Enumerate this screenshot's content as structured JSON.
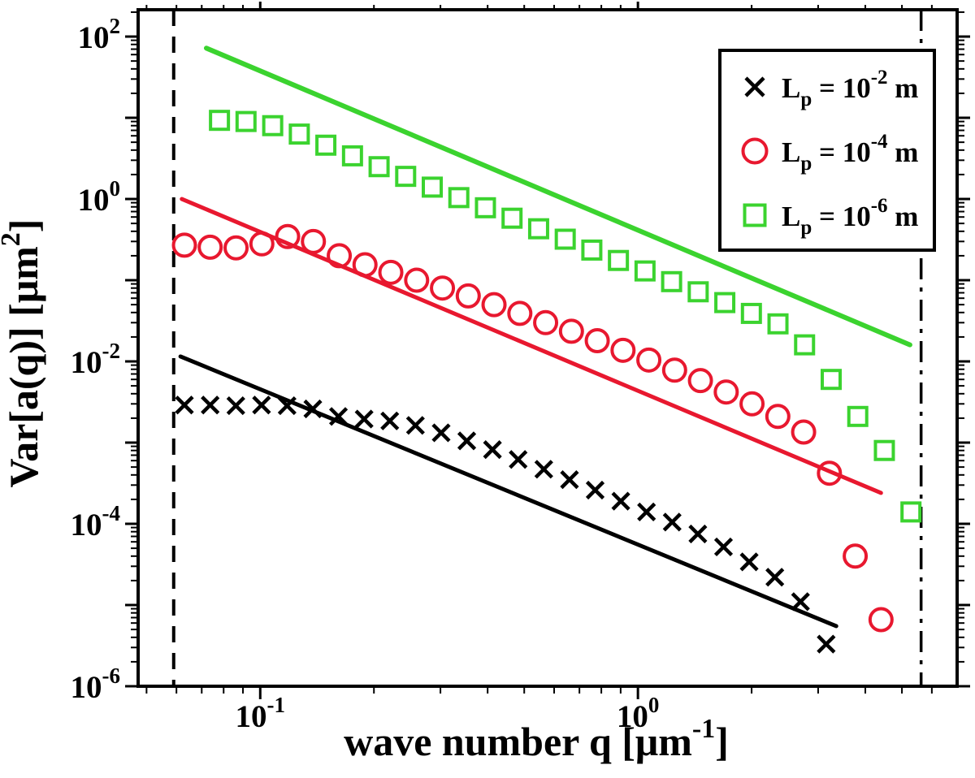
{
  "chart_data": {
    "type": "scatter",
    "x_scale": "log",
    "y_scale": "log",
    "title": "",
    "xlabel": {
      "pre": "wave number q [",
      "unit": "μm",
      "sup": "-1",
      "post": "]"
    },
    "ylabel": {
      "pre": "Var[a(q)] [",
      "unit": "μm",
      "sup": "2",
      "post": "]"
    },
    "xlim": [
      0.0475,
      7.0
    ],
    "ylim": [
      1e-06,
      214
    ],
    "grid": false,
    "x_ticks": [
      {
        "value": 0.1,
        "label_base": "10",
        "label_exp": "-1"
      },
      {
        "value": 1.0,
        "label_base": "10",
        "label_exp": "0"
      }
    ],
    "y_ticks": [
      {
        "value": 100,
        "label_base": "10",
        "label_exp": "2"
      },
      {
        "value": 1,
        "label_base": "10",
        "label_exp": "0"
      },
      {
        "value": 0.01,
        "label_base": "10",
        "label_exp": "-2"
      },
      {
        "value": 0.0001,
        "label_base": "10",
        "label_exp": "-4"
      },
      {
        "value": 1e-06,
        "label_base": "10",
        "label_exp": "-6"
      }
    ],
    "guides": [
      {
        "type": "vertical",
        "line_style": "dashed",
        "q": 0.059,
        "color": "#000000"
      },
      {
        "type": "vertical",
        "line_style": "dash-dot",
        "q": 5.62,
        "color": "#000000"
      }
    ],
    "series": [
      {
        "name": "Lp = 10^-2 m",
        "marker": "cross",
        "color": "#000000",
        "q": [
          0.063,
          0.0737,
          0.0862,
          0.1008,
          0.1178,
          0.1378,
          0.1611,
          0.1884,
          0.2203,
          0.2576,
          0.3013,
          0.3523,
          0.412,
          0.4818,
          0.5634,
          0.6589,
          0.7705,
          0.901,
          1.0537,
          1.2322,
          1.4409,
          1.685,
          1.9704,
          2.3042,
          2.6945,
          3.1509
        ],
        "values": [
          0.0029,
          0.0029,
          0.00285,
          0.0029,
          0.00285,
          0.0026,
          0.0021,
          0.00195,
          0.00185,
          0.00163,
          0.00132,
          0.00105,
          0.00082,
          0.00062,
          0.00047,
          0.00035,
          0.00026,
          0.00019,
          0.00014,
          0.000105,
          7.5e-05,
          5.2e-05,
          3.4e-05,
          2.2e-05,
          1.1e-05,
          3.3e-06
        ]
      },
      {
        "name": "Lp = 10^-4 m",
        "marker": "circle",
        "color": "#e8182f",
        "q": [
          0.063,
          0.0737,
          0.0863,
          0.101,
          0.1182,
          0.1383,
          0.1619,
          0.1894,
          0.2217,
          0.2595,
          0.3037,
          0.3554,
          0.4159,
          0.4868,
          0.5697,
          0.6667,
          0.7803,
          0.9132,
          1.0687,
          1.2508,
          1.4638,
          1.7131,
          2.0049,
          2.3464,
          2.746,
          3.2137,
          3.761,
          4.4016
        ],
        "values": [
          0.27,
          0.255,
          0.25,
          0.28,
          0.345,
          0.3,
          0.2,
          0.155,
          0.125,
          0.1,
          0.08,
          0.064,
          0.05,
          0.039,
          0.03,
          0.0235,
          0.018,
          0.0137,
          0.0104,
          0.0078,
          0.0058,
          0.0042,
          0.003,
          0.0021,
          0.00135,
          0.00042,
          4e-05,
          6.6e-06
        ]
      },
      {
        "name": "Lp = 10^-6 m",
        "marker": "square",
        "color": "#3bd32f",
        "q": [
          0.078,
          0.0917,
          0.1079,
          0.1269,
          0.1492,
          0.1755,
          0.2064,
          0.2427,
          0.2854,
          0.3356,
          0.3947,
          0.4642,
          0.5459,
          0.642,
          0.755,
          0.8879,
          1.0442,
          1.228,
          1.4441,
          1.6983,
          1.9972,
          2.3487,
          2.7621,
          3.2483,
          3.82,
          4.4924,
          5.2831
        ],
        "values": [
          9.3,
          9.0,
          8.0,
          6.3,
          4.6,
          3.4,
          2.5,
          1.9,
          1.4,
          1.04,
          0.78,
          0.58,
          0.43,
          0.32,
          0.235,
          0.175,
          0.13,
          0.096,
          0.072,
          0.053,
          0.039,
          0.029,
          0.016,
          0.006,
          0.0021,
          0.0008,
          0.00014
        ]
      }
    ],
    "fit_lines": [
      {
        "series": "Lp = 10^-2 m",
        "color": "#000000",
        "q_start": 0.0615,
        "v_start": 0.0115,
        "q_end": 3.35,
        "v_end": 5.5e-06
      },
      {
        "series": "Lp = 10^-4 m",
        "color": "#e8182f",
        "q_start": 0.062,
        "v_start": 1.0,
        "q_end": 4.4,
        "v_end": 0.00024
      },
      {
        "series": "Lp = 10^-6 m",
        "color": "#3bd32f",
        "q_start": 0.072,
        "v_start": 72.0,
        "q_end": 5.25,
        "v_end": 0.016
      }
    ],
    "legend": {
      "position": "top-right",
      "entries": [
        {
          "marker": "cross",
          "color": "#000000",
          "pre": "L",
          "sub": "p",
          "eq": " = 10",
          "exp": "-2",
          "post": " m"
        },
        {
          "marker": "circle",
          "color": "#e8182f",
          "pre": "L",
          "sub": "p",
          "eq": " = 10",
          "exp": "-4",
          "post": " m"
        },
        {
          "marker": "square",
          "color": "#3bd32f",
          "pre": "L",
          "sub": "p",
          "eq": " = 10",
          "exp": "-6",
          "post": " m"
        }
      ]
    }
  }
}
